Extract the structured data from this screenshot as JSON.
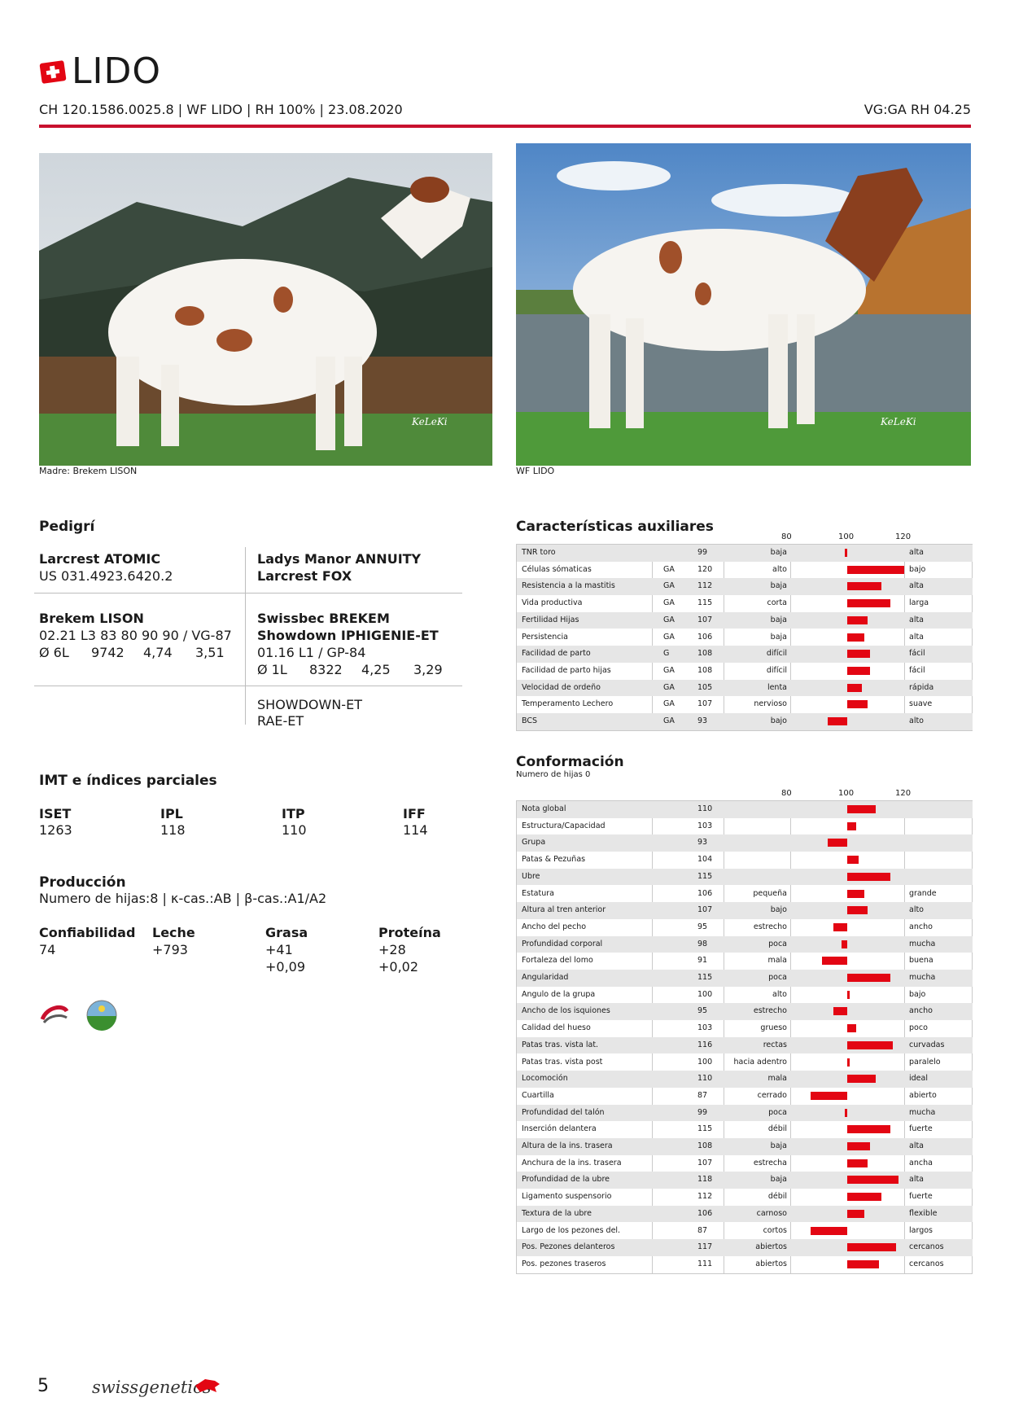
{
  "header": {
    "name": "LIDO",
    "subline": "CH 120.1586.0025.8 | WF LIDO | RH 100% | 23.08.2020",
    "vg": "VG:GA RH 04.25"
  },
  "photos": [
    {
      "caption": "Madre: Brekem LISON",
      "watermark": "KeLeKi"
    },
    {
      "caption": "WF LIDO",
      "watermark": "KeLeKi"
    }
  ],
  "pedigree": {
    "title": "Pedigrí",
    "sire": {
      "name": "Larcrest ATOMIC",
      "id": "US 031.4923.6420.2"
    },
    "sire_sire": "Ladys Manor ANNUITY",
    "sire_dam": "Larcrest FOX",
    "dam": {
      "name": "Brekem LISON",
      "line1": "02.21 L3 83 80 90 90 / VG-87",
      "lact": "Ø 6L",
      "milk": "9742",
      "fat": "4,74",
      "prot": "3,51"
    },
    "dam_sire": "Swissbec BREKEM",
    "dam_dam": {
      "name": "Showdown IPHIGENIE-ET",
      "line1": "01.16 L1 / GP-84",
      "lact": "Ø 1L",
      "milk": "8322",
      "fat": "4,25",
      "prot": "3,29"
    },
    "ddd_sire": "SHOWDOWN-ET",
    "ddd_dam": "RAE-ET"
  },
  "imt": {
    "title": "IMT e índices parciales",
    "items": [
      {
        "label": "ISET",
        "value": "1263"
      },
      {
        "label": "IPL",
        "value": "118"
      },
      {
        "label": "ITP",
        "value": "110"
      },
      {
        "label": "IFF",
        "value": "114"
      }
    ]
  },
  "production": {
    "title": "Producción",
    "subtitle": "Numero de hijas:8 | κ-cas.:AB | β-cas.:A1/A2",
    "cols": [
      {
        "label": "Confiabilidad",
        "v1": "74",
        "v2": ""
      },
      {
        "label": "Leche",
        "v1": "+793",
        "v2": ""
      },
      {
        "label": "Grasa",
        "v1": "+41",
        "v2": "+0,09"
      },
      {
        "label": "Proteína",
        "v1": "+28",
        "v2": "+0,02"
      }
    ]
  },
  "aux": {
    "title": "Características auxiliares",
    "scale": [
      "80",
      "100",
      "120"
    ],
    "rows": [
      {
        "name": "TNR toro",
        "src": "",
        "val": 99,
        "low": "baja",
        "high": "alta"
      },
      {
        "name": "Células sómaticas",
        "src": "GA",
        "val": 120,
        "low": "alto",
        "high": "bajo"
      },
      {
        "name": "Resistencia a la mastitis",
        "src": "GA",
        "val": 112,
        "low": "baja",
        "high": "alta"
      },
      {
        "name": "Vida productiva",
        "src": "GA",
        "val": 115,
        "low": "corta",
        "high": "larga"
      },
      {
        "name": "Fertilidad Hijas",
        "src": "GA",
        "val": 107,
        "low": "baja",
        "high": "alta"
      },
      {
        "name": "Persistencia",
        "src": "GA",
        "val": 106,
        "low": "baja",
        "high": "alta"
      },
      {
        "name": "Facilidad de parto",
        "src": "G",
        "val": 108,
        "low": "difícil",
        "high": "fácil"
      },
      {
        "name": "Facilidad de parto hijas",
        "src": "GA",
        "val": 108,
        "low": "difícil",
        "high": "fácil"
      },
      {
        "name": "Velocidad de ordeño",
        "src": "GA",
        "val": 105,
        "low": "lenta",
        "high": "rápida"
      },
      {
        "name": "Temperamento Lechero",
        "src": "GA",
        "val": 107,
        "low": "nervioso",
        "high": "suave"
      },
      {
        "name": "BCS",
        "src": "GA",
        "val": 93,
        "low": "bajo",
        "high": "alto"
      }
    ]
  },
  "conf": {
    "title": "Conformación",
    "subtitle": "Numero de hijas 0",
    "scale": [
      "80",
      "100",
      "120"
    ],
    "rows": [
      {
        "name": "Nota global",
        "val": 110,
        "low": "",
        "high": ""
      },
      {
        "name": "Estructura/Capacidad",
        "val": 103,
        "low": "",
        "high": ""
      },
      {
        "name": "Grupa",
        "val": 93,
        "low": "",
        "high": ""
      },
      {
        "name": "Patas & Pezuñas",
        "val": 104,
        "low": "",
        "high": ""
      },
      {
        "name": "Ubre",
        "val": 115,
        "low": "",
        "high": ""
      },
      {
        "name": "Estatura",
        "val": 106,
        "low": "pequeña",
        "high": "grande"
      },
      {
        "name": "Altura al tren anterior",
        "val": 107,
        "low": "bajo",
        "high": "alto"
      },
      {
        "name": "Ancho del pecho",
        "val": 95,
        "low": "estrecho",
        "high": "ancho"
      },
      {
        "name": "Profundidad corporal",
        "val": 98,
        "low": "poca",
        "high": "mucha"
      },
      {
        "name": "Fortaleza del lomo",
        "val": 91,
        "low": "mala",
        "high": "buena"
      },
      {
        "name": "Angularidad",
        "val": 115,
        "low": "poca",
        "high": "mucha"
      },
      {
        "name": "Angulo de la grupa",
        "val": 100,
        "low": "alto",
        "high": "bajo"
      },
      {
        "name": "Ancho de los isquiones",
        "val": 95,
        "low": "estrecho",
        "high": "ancho"
      },
      {
        "name": "Calidad del hueso",
        "val": 103,
        "low": "grueso",
        "high": "poco"
      },
      {
        "name": "Patas tras. vista lat.",
        "val": 116,
        "low": "rectas",
        "high": "curvadas"
      },
      {
        "name": "Patas tras. vista post",
        "val": 100,
        "low": "hacia adentro",
        "high": "paralelo"
      },
      {
        "name": "Locomoción",
        "val": 110,
        "low": "mala",
        "high": "ideal"
      },
      {
        "name": "Cuartilla",
        "val": 87,
        "low": "cerrado",
        "high": "abierto"
      },
      {
        "name": "Profundidad del talón",
        "val": 99,
        "low": "poca",
        "high": "mucha"
      },
      {
        "name": "Inserción delantera",
        "val": 115,
        "low": "débil",
        "high": "fuerte"
      },
      {
        "name": "Altura de la ins. trasera",
        "val": 108,
        "low": "baja",
        "high": "alta"
      },
      {
        "name": "Anchura de la ins. trasera",
        "val": 107,
        "low": "estrecha",
        "high": "ancha"
      },
      {
        "name": "Profundidad de la ubre",
        "val": 118,
        "low": "baja",
        "high": "alta"
      },
      {
        "name": "Ligamento suspensorio",
        "val": 112,
        "low": "débil",
        "high": "fuerte"
      },
      {
        "name": "Textura de la ubre",
        "val": 106,
        "low": "carnoso",
        "high": "flexible"
      },
      {
        "name": "Largo de los pezones del.",
        "val": 87,
        "low": "cortos",
        "high": "largos"
      },
      {
        "name": "Pos. Pezones delanteros",
        "val": 117,
        "low": "abiertos",
        "high": "cercanos"
      },
      {
        "name": "Pos. pezones traseros",
        "val": 111,
        "low": "abiertos",
        "high": "cercanos"
      }
    ]
  },
  "footer": {
    "page": "5",
    "brand": "swissgenetics"
  },
  "colors": {
    "accent": "#c8102e",
    "bar": "#e30613",
    "shade": "#e6e6e6"
  }
}
